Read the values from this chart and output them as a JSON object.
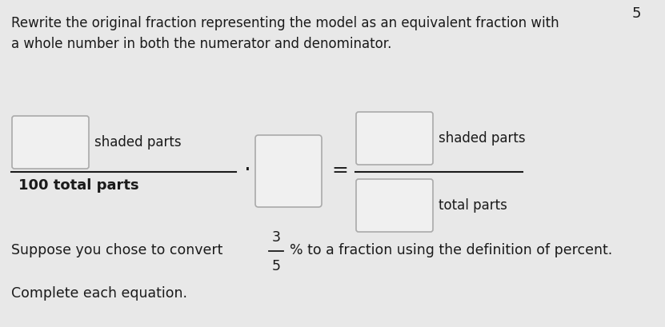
{
  "bg_color": "#e8e8e8",
  "box_face": "#f0f0f0",
  "box_edge": "#aaaaaa",
  "text_color": "#1a1a1a",
  "title_line1": "Rewrite the original fraction representing the model as an equivalent fraction with",
  "title_line2": "a whole number in both the numerator and denominator.",
  "shaded_parts_label1": "shaded parts",
  "denominator_label1": "100 total parts",
  "shaded_parts_label2": "shaded parts",
  "denominator_label2": "total parts",
  "bottom_line1": "Suppose you chose to convert",
  "bottom_line2": "% to a fraction using the definition of percent.",
  "bottom_line3": "Complete each equation.",
  "fraction_num": "3",
  "fraction_den": "5",
  "figsize": [
    8.31,
    4.09
  ],
  "dpi": 100
}
